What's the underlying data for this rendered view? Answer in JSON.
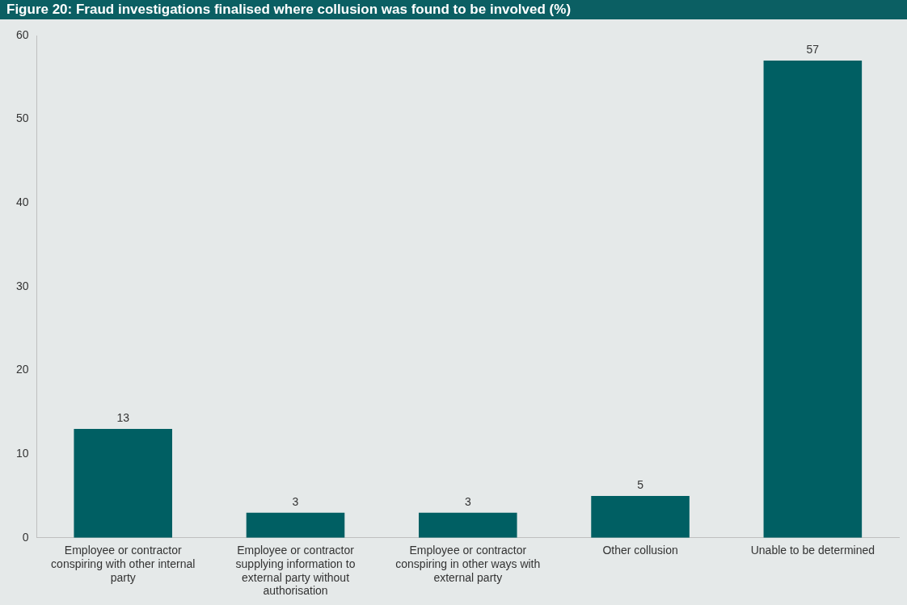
{
  "chart_data": {
    "type": "bar",
    "title": "Figure 20: Fraud investigations finalised where collusion was found to be involved (%)",
    "categories": [
      "Employee or contractor conspiring with other internal party",
      "Employee or contractor supplying information to external party without authorisation",
      "Employee or contractor conspiring in other ways with external party",
      "Other collusion",
      "Unable to be determined"
    ],
    "values": [
      13,
      3,
      3,
      5,
      57
    ],
    "color": "#005f63",
    "ylim": [
      0,
      60
    ],
    "yticks": [
      0,
      10,
      20,
      30,
      40,
      50,
      60
    ],
    "grid": false,
    "legend": false,
    "data_labels": true
  }
}
